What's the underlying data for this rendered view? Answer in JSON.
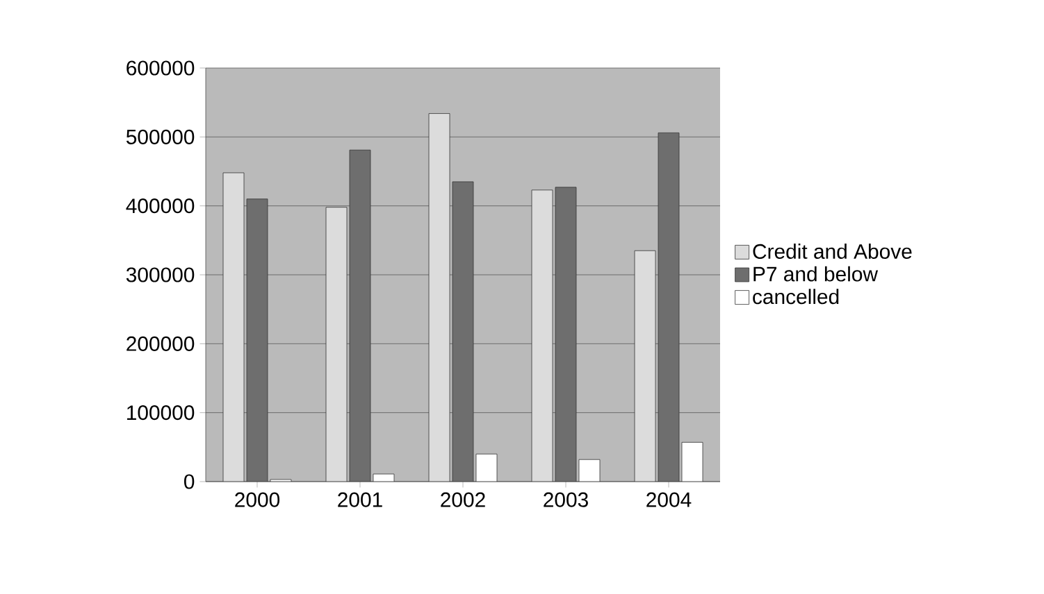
{
  "chart_data": {
    "type": "bar",
    "categories": [
      "2000",
      "2001",
      "2002",
      "2003",
      "2004"
    ],
    "series": [
      {
        "name": "Credit and Above",
        "color": "#dcdcdc",
        "values": [
          448000,
          398000,
          534000,
          423000,
          335000
        ]
      },
      {
        "name": "P7 and below",
        "color": "#6e6e6e",
        "values": [
          410000,
          481000,
          435000,
          427000,
          506000
        ]
      },
      {
        "name": "cancelled",
        "color": "#ffffff",
        "values": [
          3000,
          11000,
          40000,
          32000,
          57000
        ]
      }
    ],
    "ylim": [
      0,
      600000
    ],
    "yticks": [
      0,
      100000,
      200000,
      300000,
      400000,
      500000,
      600000
    ],
    "grid": "y",
    "legend": "right"
  }
}
